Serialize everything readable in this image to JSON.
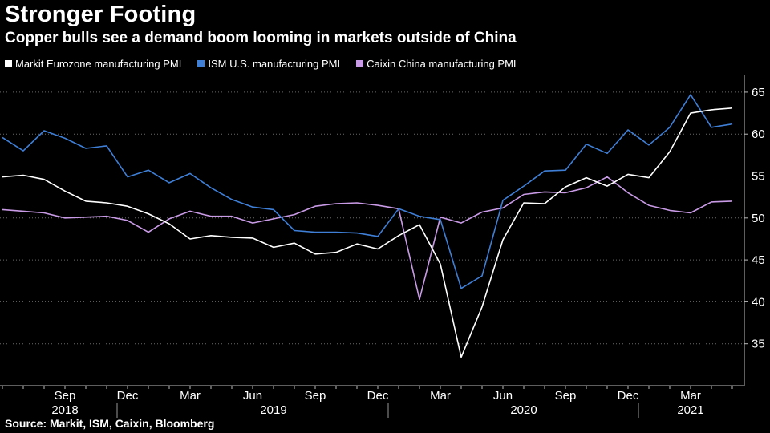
{
  "title": "Stronger Footing",
  "subtitle": "Copper bulls see a demand boom looming in markets outside of China",
  "source": "Source: Markit, ISM, Caixin, Bloomberg",
  "legend": [
    {
      "label": "Markit Eurozone manufacturing PMI",
      "color": "#ffffff"
    },
    {
      "label": "ISM U.S. manufacturing PMI",
      "color": "#3f7fd6"
    },
    {
      "label": "Caixin China manufacturing PMI",
      "color": "#c99be6"
    }
  ],
  "chart_data": {
    "type": "line",
    "title": "Stronger Footing",
    "xlabel": "",
    "ylabel": "",
    "ylim": [
      30,
      67
    ],
    "yticks": [
      35,
      40,
      45,
      50,
      55,
      60,
      65
    ],
    "grid": true,
    "x": [
      "2018-06",
      "2018-07",
      "2018-08",
      "2018-09",
      "2018-10",
      "2018-11",
      "2018-12",
      "2019-01",
      "2019-02",
      "2019-03",
      "2019-04",
      "2019-05",
      "2019-06",
      "2019-07",
      "2019-08",
      "2019-09",
      "2019-10",
      "2019-11",
      "2019-12",
      "2020-01",
      "2020-02",
      "2020-03",
      "2020-04",
      "2020-05",
      "2020-06",
      "2020-07",
      "2020-08",
      "2020-09",
      "2020-10",
      "2020-11",
      "2020-12",
      "2021-01",
      "2021-02",
      "2021-03",
      "2021-04",
      "2021-05"
    ],
    "x_tick_labels": [
      {
        "month": "2018-09",
        "label": "Sep"
      },
      {
        "month": "2018-12",
        "label": "Dec"
      },
      {
        "month": "2019-03",
        "label": "Mar"
      },
      {
        "month": "2019-06",
        "label": "Jun"
      },
      {
        "month": "2019-09",
        "label": "Sep"
      },
      {
        "month": "2019-12",
        "label": "Dec"
      },
      {
        "month": "2020-03",
        "label": "Mar"
      },
      {
        "month": "2020-06",
        "label": "Jun"
      },
      {
        "month": "2020-09",
        "label": "Sep"
      },
      {
        "month": "2020-12",
        "label": "Dec"
      },
      {
        "month": "2021-03",
        "label": "Mar"
      }
    ],
    "year_labels": [
      {
        "month": "2018-09",
        "label": "2018"
      },
      {
        "month": "2019-07",
        "label": "2019"
      },
      {
        "month": "2020-07",
        "label": "2020"
      },
      {
        "month": "2021-03",
        "label": "2021"
      }
    ],
    "year_separators": [
      "2018-12",
      "2020-01",
      "2021-01"
    ],
    "series": [
      {
        "name": "Markit Eurozone manufacturing PMI",
        "color": "#ffffff",
        "values": [
          54.9,
          55.1,
          54.6,
          53.2,
          52.0,
          51.8,
          51.4,
          50.5,
          49.3,
          47.5,
          47.9,
          47.7,
          47.6,
          46.5,
          47.0,
          45.7,
          45.9,
          46.9,
          46.3,
          47.9,
          49.2,
          44.5,
          33.4,
          39.4,
          47.4,
          51.8,
          51.7,
          53.7,
          54.8,
          53.8,
          55.2,
          54.8,
          57.9,
          62.5,
          62.9,
          63.1
        ]
      },
      {
        "name": "ISM U.S. manufacturing PMI",
        "color": "#3f7fd6",
        "values": [
          59.6,
          58.0,
          60.4,
          59.5,
          58.3,
          58.6,
          54.9,
          55.7,
          54.2,
          55.3,
          53.6,
          52.2,
          51.3,
          51.0,
          48.5,
          48.3,
          48.3,
          48.2,
          47.8,
          51.1,
          50.2,
          49.8,
          41.6,
          43.1,
          52.1,
          53.8,
          55.6,
          55.7,
          58.8,
          57.7,
          60.5,
          58.7,
          60.8,
          64.7,
          60.8,
          61.2
        ]
      },
      {
        "name": "Caixin China manufacturing PMI",
        "color": "#c99be6",
        "values": [
          51.0,
          50.8,
          50.6,
          50.0,
          50.1,
          50.2,
          49.7,
          48.3,
          49.9,
          50.8,
          50.2,
          50.2,
          49.4,
          49.9,
          50.4,
          51.4,
          51.7,
          51.8,
          51.5,
          51.1,
          40.3,
          50.1,
          49.4,
          50.7,
          51.2,
          52.8,
          53.1,
          53.0,
          53.6,
          54.9,
          53.0,
          51.5,
          50.9,
          50.6,
          51.9,
          52.0
        ]
      }
    ]
  }
}
